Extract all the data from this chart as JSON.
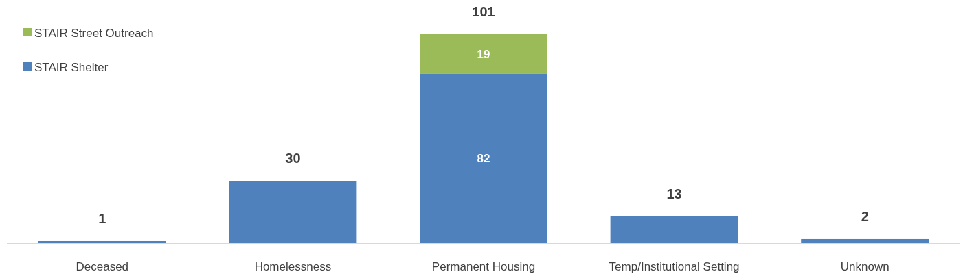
{
  "chart_data": {
    "type": "bar",
    "stacked": true,
    "categories": [
      "Deceased",
      "Homelessness",
      "Permanent Housing",
      "Temp/Institutional Setting",
      "Unknown"
    ],
    "series": [
      {
        "name": "STAIR Shelter",
        "color": "#4f81bd",
        "values": [
          1,
          30,
          82,
          13,
          2
        ],
        "value_labels": [
          null,
          null,
          "82",
          null,
          null
        ]
      },
      {
        "name": "STAIR Street Outreach",
        "color": "#9bbb59",
        "values": [
          null,
          null,
          19,
          null,
          null
        ],
        "value_labels": [
          null,
          null,
          "19",
          null,
          null
        ]
      }
    ],
    "totals": [
      "1",
      "30",
      "101",
      "13",
      "2"
    ],
    "legend": "top left",
    "grid": false
  }
}
